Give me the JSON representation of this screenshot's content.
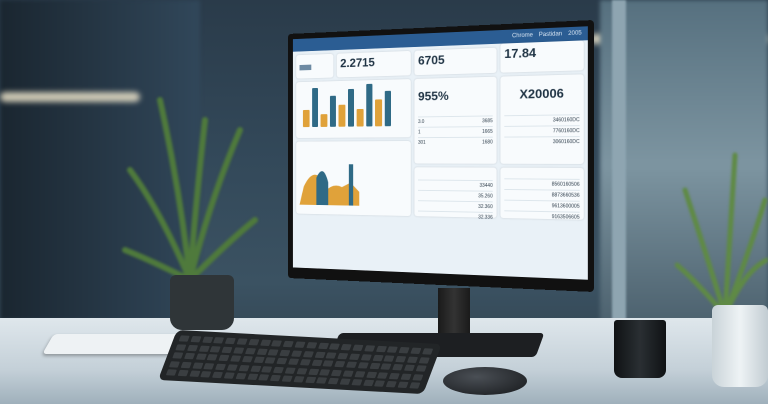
{
  "screen": {
    "topbar_items": [
      "Chrome",
      "Pastidan",
      "2005"
    ],
    "cards": {
      "kpi1": {
        "value": "2.2715"
      },
      "kpi2": {
        "value": "6705"
      },
      "kpi3": {
        "value": "17.84"
      },
      "kpi4": {
        "value": "955%"
      },
      "kpi5": {
        "value": "X20006"
      }
    },
    "table_mid": [
      [
        "3.0",
        "3685"
      ],
      [
        "1",
        "1665"
      ],
      [
        "301",
        "1680"
      ]
    ],
    "table_bottom": [
      "33440",
      "35.260",
      "32.360",
      "32.336"
    ],
    "table_right": [
      "3460160DC",
      "7760160DC",
      "3060160DC"
    ],
    "table_right_bottom": [
      "8560160506",
      "8873660536",
      "9613600005",
      "9163506605"
    ]
  },
  "bar_levels": [
    0.4,
    0.9,
    0.3,
    0.7,
    0.5,
    0.85,
    0.4,
    0.95,
    0.6,
    0.8
  ],
  "colors": {
    "blue": "#2b5d93",
    "teal": "#2f6a86",
    "amber": "#e0a23a"
  }
}
